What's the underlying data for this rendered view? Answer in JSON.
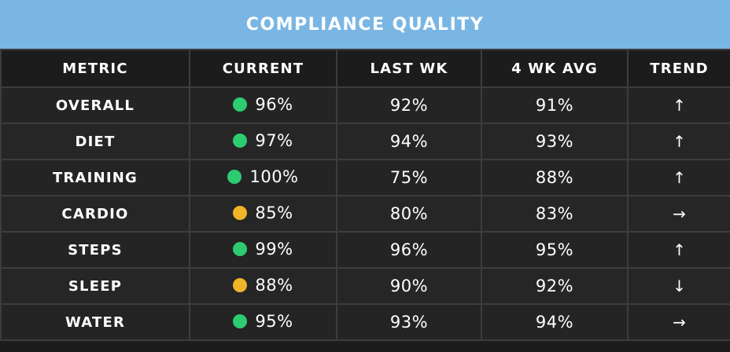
{
  "title": "COMPLIANCE QUALITY",
  "colors": {
    "title_bg": "#7ab6e4",
    "good": "#2ecc71",
    "warn": "#f0b429"
  },
  "columns": [
    "METRIC",
    "CURRENT",
    "LAST WK",
    "4 WK AVG",
    "TREND"
  ],
  "rows": [
    {
      "metric": "OVERALL",
      "current": "96%",
      "status": "good",
      "last_wk": "92%",
      "avg_4wk": "91%",
      "trend": "↑",
      "trend_icon": "arrow-up-icon"
    },
    {
      "metric": "DIET",
      "current": "97%",
      "status": "good",
      "last_wk": "94%",
      "avg_4wk": "93%",
      "trend": "↑",
      "trend_icon": "arrow-up-icon"
    },
    {
      "metric": "TRAINING",
      "current": "100%",
      "status": "good",
      "last_wk": "75%",
      "avg_4wk": "88%",
      "trend": "↑",
      "trend_icon": "arrow-up-icon"
    },
    {
      "metric": "CARDIO",
      "current": "85%",
      "status": "warn",
      "last_wk": "80%",
      "avg_4wk": "83%",
      "trend": "→",
      "trend_icon": "arrow-right-icon"
    },
    {
      "metric": "STEPS",
      "current": "99%",
      "status": "good",
      "last_wk": "96%",
      "avg_4wk": "95%",
      "trend": "↑",
      "trend_icon": "arrow-up-icon"
    },
    {
      "metric": "SLEEP",
      "current": "88%",
      "status": "warn",
      "last_wk": "90%",
      "avg_4wk": "92%",
      "trend": "↓",
      "trend_icon": "arrow-down-icon"
    },
    {
      "metric": "WATER",
      "current": "95%",
      "status": "good",
      "last_wk": "93%",
      "avg_4wk": "94%",
      "trend": "→",
      "trend_icon": "arrow-right-icon"
    }
  ]
}
